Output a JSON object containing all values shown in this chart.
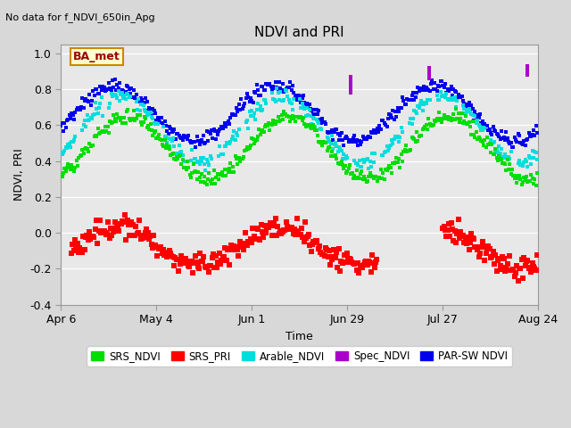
{
  "title": "NDVI and PRI",
  "subtitle": "No data for f_NDVI_650in_Apg",
  "ylabel": "NDVI, PRI",
  "xlabel": "Time",
  "site_label": "BA_met",
  "xlim_days": [
    0,
    140
  ],
  "ylim": [
    -0.4,
    1.05
  ],
  "yticks": [
    -0.4,
    -0.2,
    0.0,
    0.2,
    0.4,
    0.6,
    0.8,
    1.0
  ],
  "xtick_labels": [
    "Apr 6",
    "May 4",
    "Jun 1",
    "Jun 29",
    "Jul 27",
    "Aug 24"
  ],
  "xtick_days": [
    0,
    28,
    56,
    84,
    112,
    140
  ],
  "bg_color": "#d8d8d8",
  "plot_bg": "#e8e8e8",
  "colors": {
    "SRS_NDVI": "#00dd00",
    "SRS_PRI": "#ff0000",
    "Arable_NDVI": "#00dddd",
    "Spec_NDVI": "#aa00cc",
    "PAR_SW_NDVI": "#0000ee"
  },
  "legend_labels": [
    "SRS_NDVI",
    "SRS_PRI",
    "Arable_NDVI",
    "Spec_NDVI",
    "PAR-SW NDVI"
  ]
}
